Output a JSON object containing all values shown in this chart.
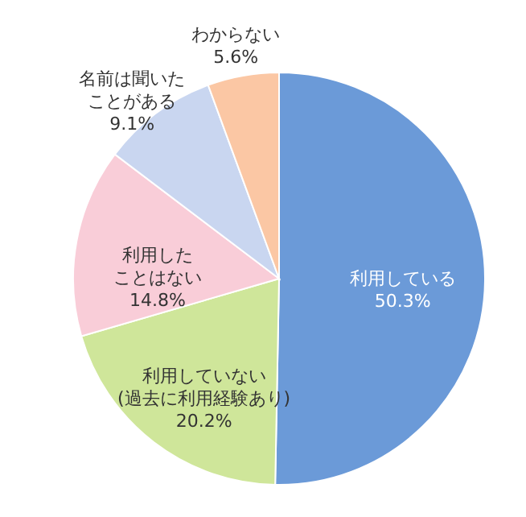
{
  "chart_data": {
    "type": "pie",
    "categories": [
      "利用している",
      "利用していない(過去に利用経験あり)",
      "利用したことはない",
      "名前は聞いたことがある",
      "わからない"
    ],
    "values": [
      50.3,
      20.2,
      14.8,
      9.1,
      5.6
    ],
    "value_labels": [
      "50.3%",
      "20.2%",
      "14.8%",
      "9.1%",
      "5.6%"
    ],
    "colors": [
      "#6b9ad8",
      "#cfe69a",
      "#f9cdd8",
      "#c9d6f0",
      "#fbc7a4"
    ]
  }
}
